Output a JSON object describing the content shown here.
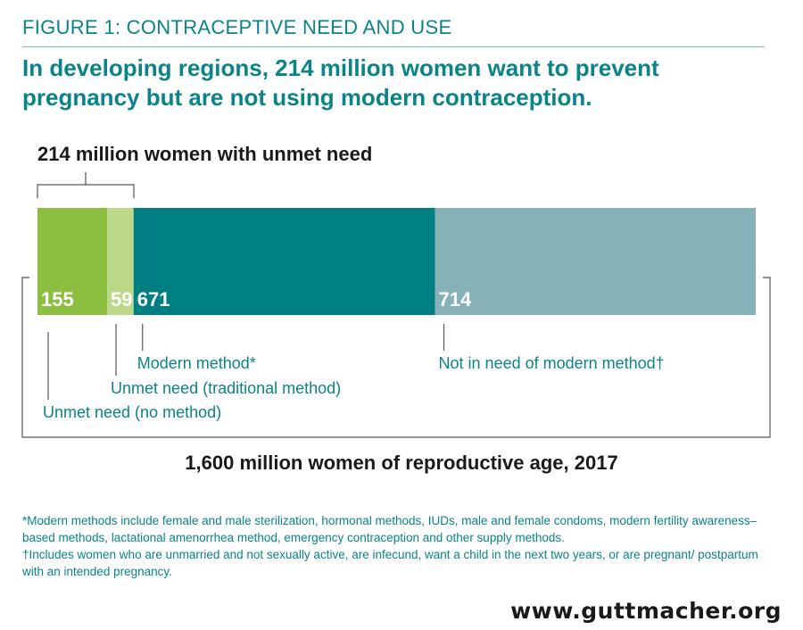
{
  "figure_label": "FIGURE 1: CONTRACEPTIVE NEED AND USE",
  "headline": "In developing regions, 214 million women want to prevent pregnancy but are not using modern contraception.",
  "unmet_title": "214 million women with unmet need",
  "total_title": "1,600 million women of reproductive age, 2017",
  "chart_data": {
    "type": "bar",
    "orientation": "horizontal-stacked",
    "total": 1600,
    "segments": [
      {
        "category": "Unmet need (no method)",
        "value": 155,
        "label": "155",
        "color": "#8cbf3f"
      },
      {
        "category": "Unmet need (traditional method)",
        "value": 59,
        "label": "59",
        "color": "#bcd98a"
      },
      {
        "category": "Modern method*",
        "value": 671,
        "label": "671",
        "color": "#007f83"
      },
      {
        "category": "Not in need of modern method†",
        "value": 714,
        "label": "714",
        "color": "#87b1b9"
      }
    ]
  },
  "footnotes": [
    "*Modern methods include female and male sterilization, hormonal methods, IUDs, male and female condoms, modern fertility awareness–based methods, lactational amenorrhea method, emergency contraception and other supply methods.",
    "†Includes women who are unmarried and not sexually active, are infecund, want a child in the next two years, or are pregnant/ postpartum with an intended pregnancy."
  ],
  "website": "www.guttmacher.org",
  "colors": {
    "accent_teal": "#0a8488",
    "bracket": "#555555",
    "text_dark": "#1a1a1a"
  }
}
